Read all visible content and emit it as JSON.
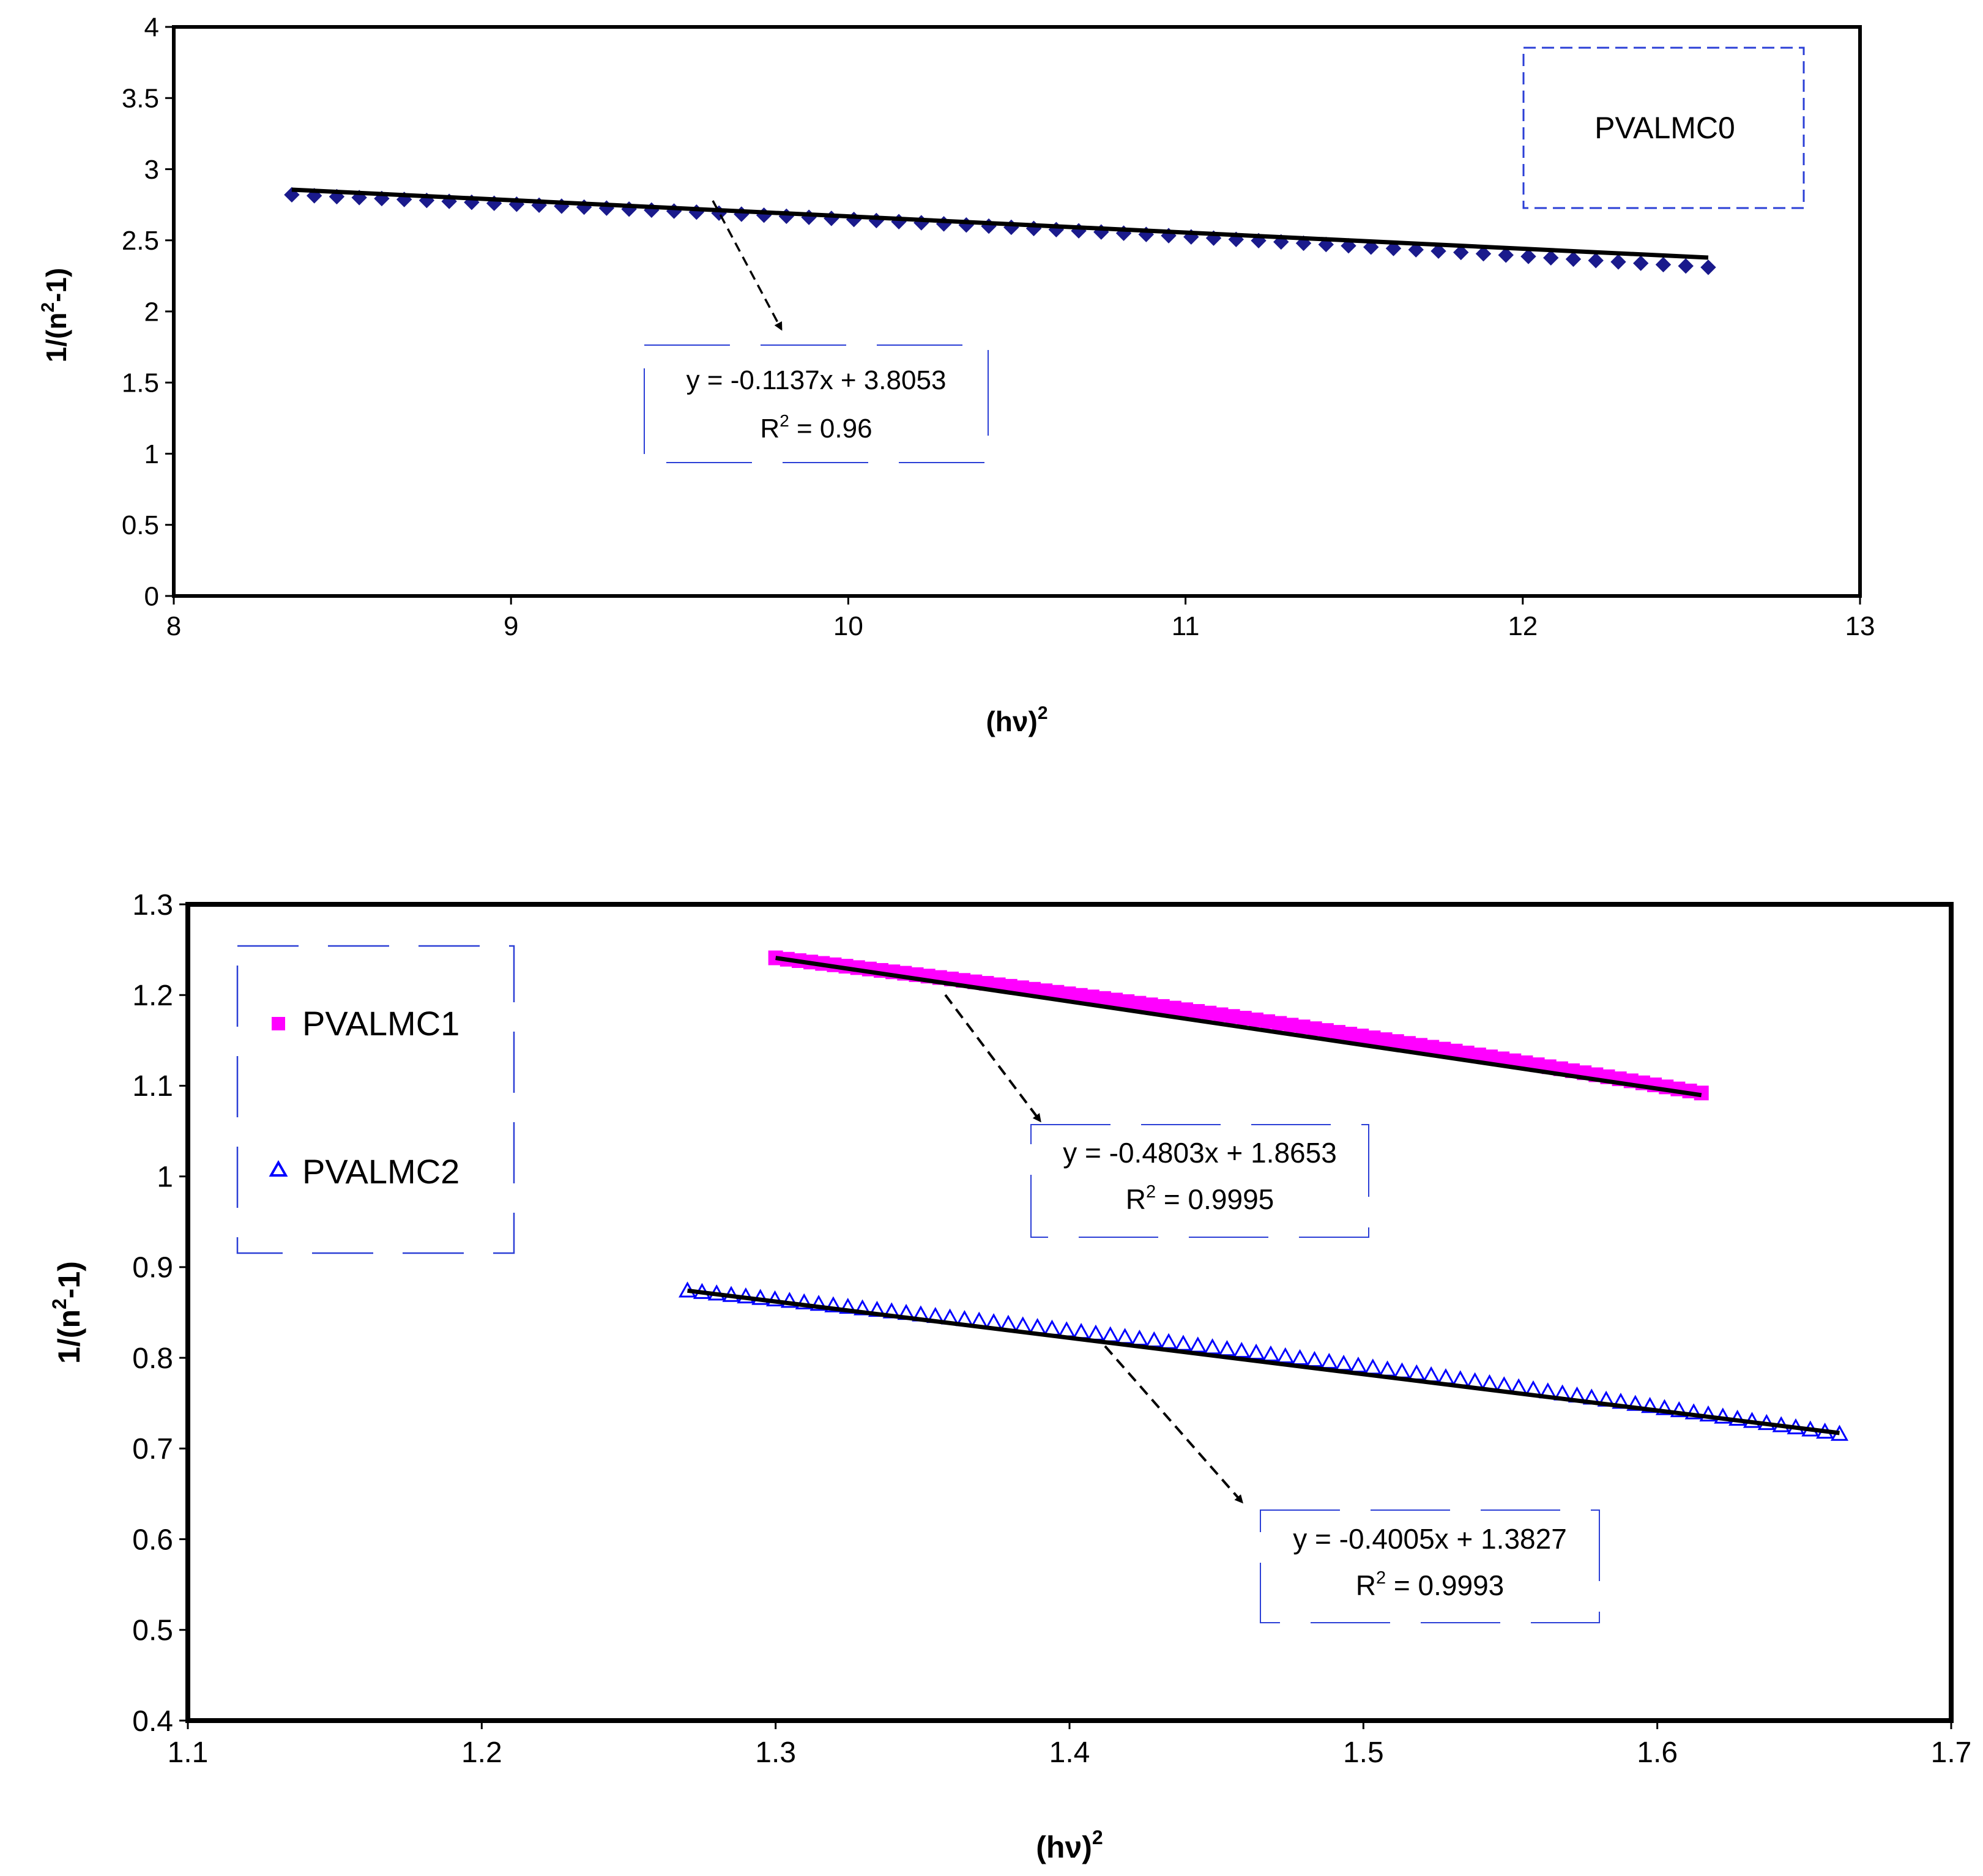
{
  "colors": {
    "pvalmc0_marker": "#1a1a8c",
    "pvalmc1_marker": "#ff00ff",
    "pvalmc2_marker": "#0000ff",
    "fit_line": "#000000",
    "box_border": "#2b3fd6",
    "axis": "#000000"
  },
  "chart_data": [
    {
      "type": "scatter",
      "title": "",
      "xlabel": "(hν)",
      "xlabel_sup": "2",
      "ylabel": "1/(n",
      "ylabel_sup": "2",
      "ylabel_tail": "-1)",
      "xlim": [
        8,
        13
      ],
      "ylim": [
        0,
        4
      ],
      "x_ticks": [
        "8",
        "9",
        "10",
        "11",
        "12",
        "13"
      ],
      "y_ticks": [
        "0",
        "0.5",
        "1",
        "1.5",
        "2",
        "2.5",
        "3",
        "3.5",
        "4"
      ],
      "legend": {
        "placement": "top-right",
        "entries": [
          "PVALMC0"
        ]
      },
      "series": [
        {
          "name": "PVALMC0",
          "marker": "diamond",
          "x_range": [
            8.35,
            12.55
          ],
          "y_start": 2.82,
          "y_end": 2.31,
          "fit": {
            "slope": -0.1137,
            "intercept": 3.8053,
            "x_range": [
              8.35,
              12.55
            ]
          },
          "annotation": {
            "equation": "y = -0.1137x + 3.8053",
            "r2_prefix": "R",
            "r2_sup": "2",
            "r2_value": " = 0.96"
          }
        }
      ]
    },
    {
      "type": "scatter",
      "title": "",
      "xlabel": "(hν)",
      "xlabel_sup": "2",
      "ylabel": "1/(n",
      "ylabel_sup": "2",
      "ylabel_tail": "-1)",
      "xlim": [
        1.1,
        1.7
      ],
      "ylim": [
        0.4,
        1.3
      ],
      "x_ticks": [
        "1.1",
        "1.2",
        "1.3",
        "1.4",
        "1.5",
        "1.6",
        "1.7"
      ],
      "y_ticks": [
        "0.4",
        "0.5",
        "0.6",
        "0.7",
        "0.8",
        "0.9",
        "1",
        "1.1",
        "1.2",
        "1.3"
      ],
      "legend": {
        "placement": "top-left",
        "entries": [
          "PVALMC1",
          "PVALMC2"
        ]
      },
      "series": [
        {
          "name": "PVALMC1",
          "marker": "square",
          "x_range": [
            1.3,
            1.615
          ],
          "y_start": 1.241,
          "y_end": 1.092,
          "fit": {
            "slope": -0.4803,
            "intercept": 1.8653,
            "x_range": [
              1.3,
              1.615
            ]
          },
          "annotation": {
            "equation": "y = -0.4803x + 1.8653",
            "r2_prefix": "R",
            "r2_sup": "2",
            "r2_value": " = 0.9995"
          }
        },
        {
          "name": "PVALMC2",
          "marker": "triangle",
          "x_range": [
            1.27,
            1.662
          ],
          "y_start": 0.874,
          "y_end": 0.716,
          "fit": {
            "slope": -0.4005,
            "intercept": 1.3827,
            "x_range": [
              1.27,
              1.662
            ]
          },
          "annotation": {
            "equation": "y = -0.4005x + 1.3827",
            "r2_prefix": "R",
            "r2_sup": "2",
            "r2_value": " = 0.9993"
          }
        }
      ]
    }
  ]
}
